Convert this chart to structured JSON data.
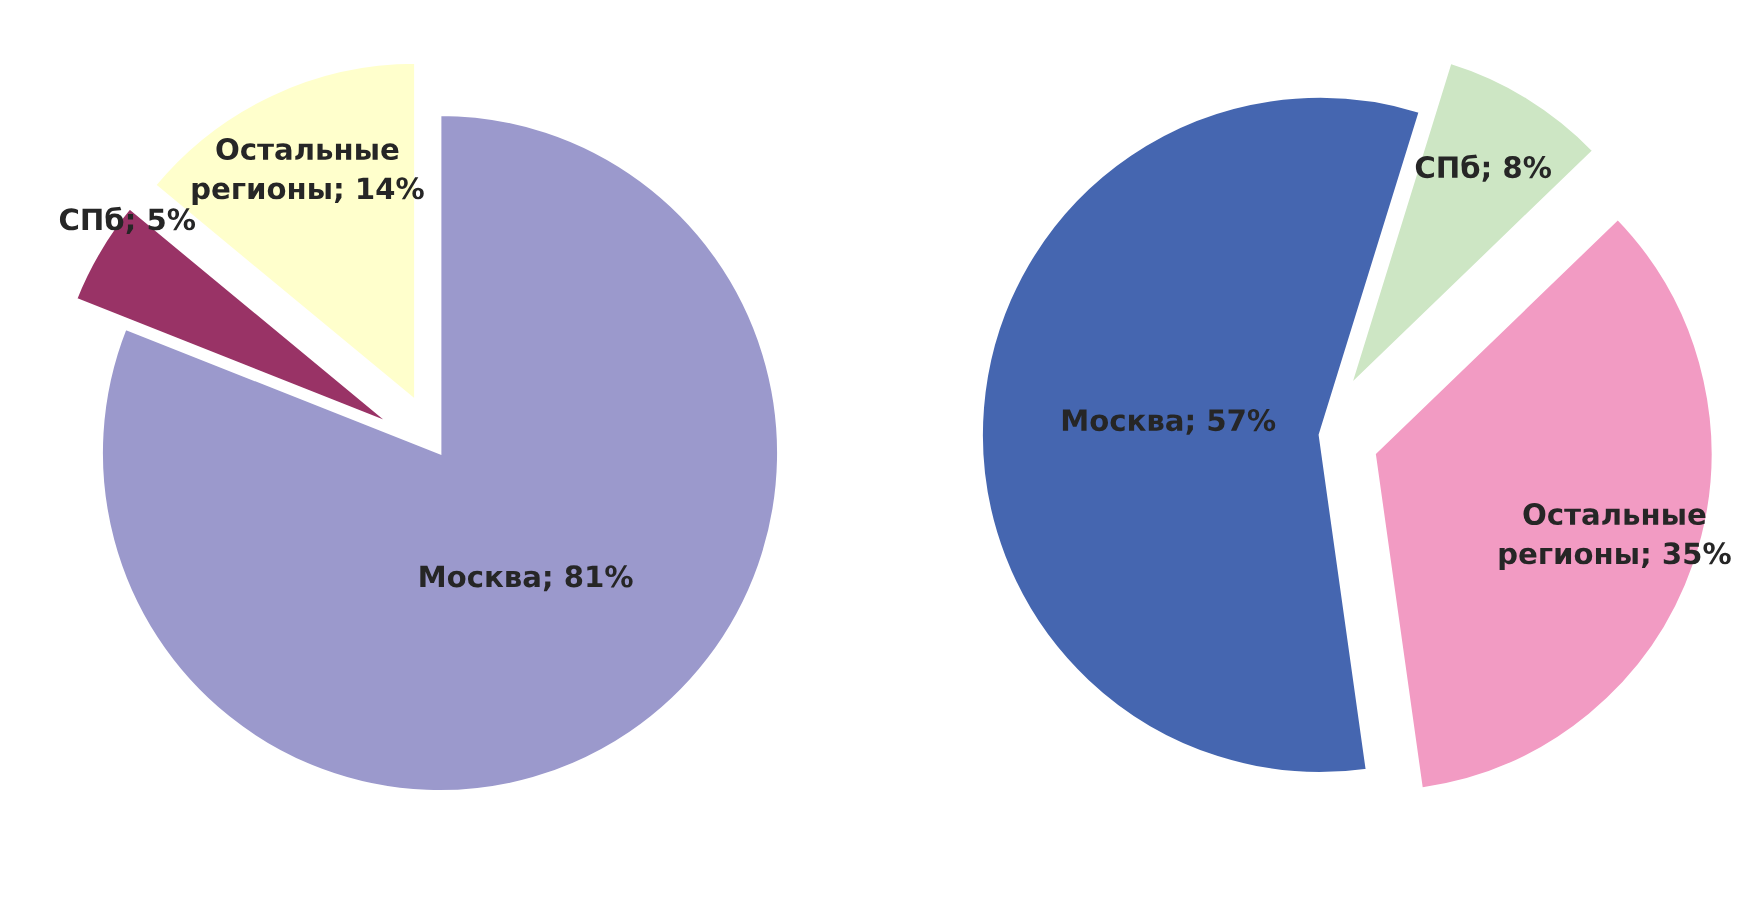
{
  "chart_data": [
    {
      "type": "pie",
      "categories": [
        "Москва",
        "СПб",
        "Остальные регионы"
      ],
      "values": [
        81,
        5,
        14
      ],
      "colors": [
        "#9b99cc",
        "#993366",
        "#ffffcc"
      ],
      "value_labels": [
        "81%",
        "5%",
        "14%"
      ]
    },
    {
      "type": "pie",
      "categories": [
        "Москва",
        "СПб",
        "Остальные регионы"
      ],
      "values": [
        57,
        8,
        35
      ],
      "colors": [
        "#4566b0",
        "#cde6c4",
        "#f29bc3"
      ],
      "value_labels": [
        "57%",
        "8%",
        "35%"
      ]
    }
  ]
}
